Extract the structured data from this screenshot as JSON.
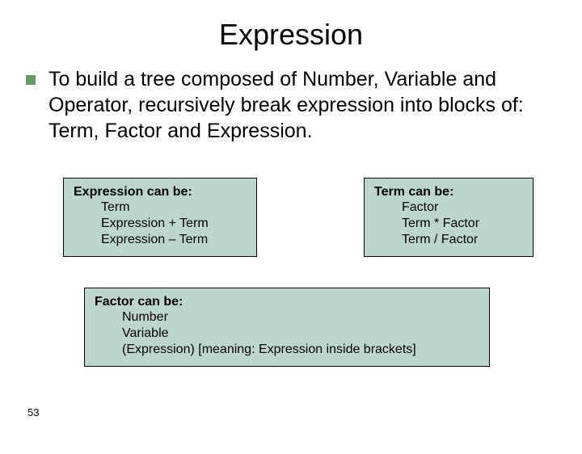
{
  "slide": {
    "title": "Expression",
    "page_number": "53",
    "bullet": {
      "marker_color": "#649b65",
      "text": "To build a tree composed of Number, Variable and Operator, recursively break expression into blocks of: Term, Factor and Expression."
    },
    "boxes": {
      "background_color": "#bcd5cd",
      "border_color": "#000000",
      "expression": {
        "title": "Expression can be:",
        "lines": [
          "Term",
          "Expression + Term",
          "Expression – Term"
        ]
      },
      "term": {
        "title": "Term can be:",
        "lines": [
          "Factor",
          "Term * Factor",
          "Term / Factor"
        ]
      },
      "factor": {
        "title": "Factor can be:",
        "lines": [
          "Number",
          "Variable",
          "(Expression)  [meaning: Expression inside brackets]"
        ]
      }
    }
  }
}
